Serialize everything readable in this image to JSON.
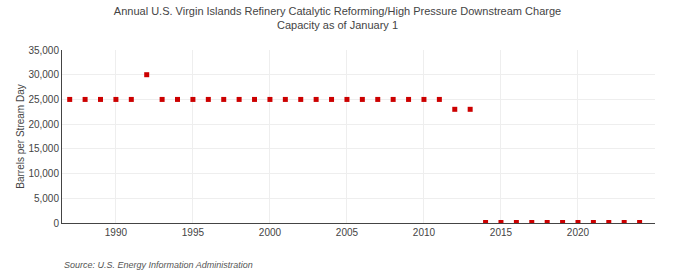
{
  "chart_data": {
    "type": "scatter",
    "title": "Annual U.S. Virgin Islands Refinery Catalytic Reforming/High Pressure Downstream Charge\nCapacity as of January 1",
    "ylabel": "Barrels per Stream Day",
    "annotations": [
      "Source: U.S. Energy Information Administration"
    ],
    "color": "#cc0000",
    "marker": "square",
    "grid": true,
    "xlim": [
      1986.5,
      2025
    ],
    "xticks": [
      1990,
      1995,
      2000,
      2005,
      2010,
      2015,
      2020
    ],
    "ylim": [
      0,
      35000
    ],
    "yticks": [
      0,
      {
        "value": 5000,
        "label": "5,000"
      },
      {
        "value": 10000,
        "label": "10,000"
      },
      {
        "value": 15000,
        "label": "15,000"
      },
      {
        "value": 20000,
        "label": "20,000"
      },
      {
        "value": 25000,
        "label": "25,000"
      },
      {
        "value": 30000,
        "label": "30,000"
      },
      {
        "value": 35000,
        "label": "35,000"
      }
    ],
    "x": [
      1987,
      1988,
      1989,
      1990,
      1991,
      1992,
      1993,
      1994,
      1995,
      1996,
      1997,
      1998,
      1999,
      2000,
      2001,
      2002,
      2003,
      2004,
      2005,
      2006,
      2007,
      2008,
      2009,
      2010,
      2011,
      2012,
      2013,
      2014,
      2015,
      2016,
      2017,
      2018,
      2019,
      2020,
      2021,
      2022,
      2023,
      2024
    ],
    "values": [
      25000,
      25000,
      25000,
      25000,
      25000,
      30000,
      25000,
      25000,
      25000,
      25000,
      25000,
      25000,
      25000,
      25000,
      25000,
      25000,
      25000,
      25000,
      25000,
      25000,
      25000,
      25000,
      25000,
      25000,
      25000,
      23000,
      23000,
      100,
      100,
      100,
      100,
      100,
      100,
      100,
      100,
      100,
      100,
      100
    ]
  }
}
